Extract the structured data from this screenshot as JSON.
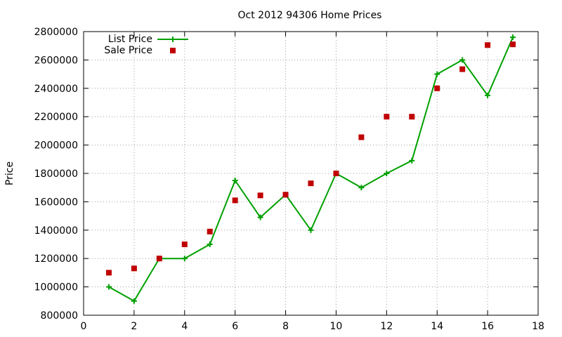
{
  "chart_data": {
    "type": "line",
    "title": "Oct 2012 94306 Home Prices",
    "xlabel": "",
    "ylabel": "Price",
    "xlim": [
      0,
      18
    ],
    "ylim": [
      800000,
      2800000
    ],
    "x_ticks": [
      "0",
      "2",
      "4",
      "6",
      "8",
      "10",
      "12",
      "14",
      "16",
      "18"
    ],
    "y_ticks": [
      "800000",
      "1000000",
      "1200000",
      "1400000",
      "1600000",
      "1800000",
      "2000000",
      "2200000",
      "2400000",
      "2600000",
      "2800000"
    ],
    "grid": true,
    "legend_position": "top-left",
    "series": [
      {
        "name": "List Price",
        "style": "line-with-plus-markers",
        "color": "#00a000",
        "x": [
          1,
          2,
          3,
          4,
          5,
          6,
          7,
          8,
          9,
          10,
          11,
          12,
          13,
          14,
          15,
          16,
          17
        ],
        "values": [
          1000000,
          900000,
          1200000,
          1200000,
          1300000,
          1750000,
          1490000,
          1650000,
          1400000,
          1800000,
          1700000,
          1800000,
          1890000,
          2500000,
          2600000,
          2350000,
          2760000
        ]
      },
      {
        "name": "Sale Price",
        "style": "square-markers",
        "color": "#c00000",
        "x": [
          1,
          2,
          3,
          4,
          5,
          6,
          7,
          8,
          9,
          10,
          11,
          12,
          13,
          14,
          15,
          16,
          17
        ],
        "values": [
          1100000,
          1130000,
          1200000,
          1300000,
          1390000,
          1610000,
          1645000,
          1650000,
          1730000,
          1800000,
          2055000,
          2200000,
          2200000,
          2400000,
          2535000,
          2705000,
          2710000
        ]
      }
    ]
  }
}
